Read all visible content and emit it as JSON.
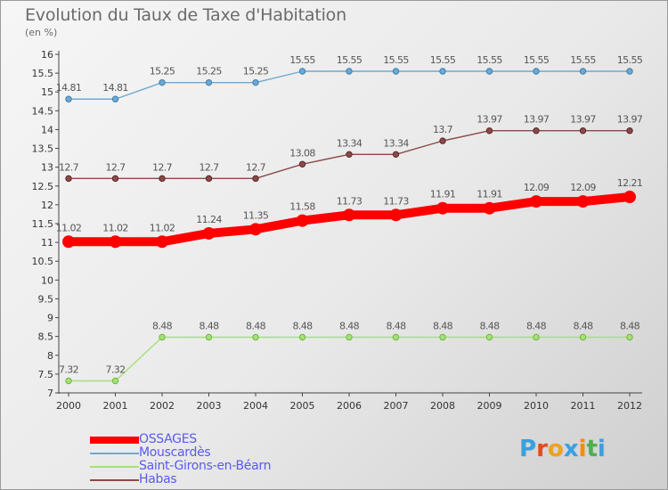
{
  "title": "Evolution du Taux de Taxe d'Habitation",
  "unit_label": "(en %)",
  "logo_text": "Proxiti",
  "chart_data": {
    "type": "line",
    "title": "Evolution du Taux de Taxe d'Habitation",
    "ylabel": "(en %)",
    "x": [
      "2000",
      "2001",
      "2002",
      "2003",
      "2004",
      "2005",
      "2006",
      "2007",
      "2008",
      "2009",
      "2010",
      "2011",
      "2012"
    ],
    "ylim": [
      7,
      16
    ],
    "y_ticks": [
      "7",
      "7.5",
      "8",
      "8.5",
      "9",
      "9.5",
      "10",
      "10.5",
      "11",
      "11.5",
      "12",
      "12.5",
      "13",
      "13.5",
      "14",
      "14.5",
      "15",
      "15.5",
      "16"
    ],
    "grid": false,
    "legend_position": "bottom-left",
    "series": [
      {
        "name": "OSSAGES",
        "color": "#ff0000",
        "values": [
          11.02,
          11.02,
          11.02,
          11.24,
          11.35,
          11.58,
          11.73,
          11.73,
          11.91,
          11.91,
          12.09,
          12.09,
          12.21
        ],
        "labels": [
          "11.02",
          "11.02",
          "11.02",
          "11.24",
          "11.35",
          "11.58",
          "11.73",
          "11.73",
          "11.91",
          "11.91",
          "12.09",
          "12.09",
          "12.21"
        ]
      },
      {
        "name": "Mouscardès",
        "color": "#6fa8d0",
        "values": [
          14.81,
          14.81,
          15.25,
          15.25,
          15.25,
          15.55,
          15.55,
          15.55,
          15.55,
          15.55,
          15.55,
          15.55,
          15.55
        ],
        "labels": [
          "14.81",
          "14.81",
          "15.25",
          "15.25",
          "15.25",
          "15.55",
          "15.55",
          "15.55",
          "15.55",
          "15.55",
          "15.55",
          "15.55",
          "15.55"
        ]
      },
      {
        "name": "Saint-Girons-en-Béarn",
        "color": "#a6e07a",
        "values": [
          7.32,
          7.32,
          8.48,
          8.48,
          8.48,
          8.48,
          8.48,
          8.48,
          8.48,
          8.48,
          8.48,
          8.48,
          8.48
        ],
        "labels": [
          "7.32",
          "7.32",
          "8.48",
          "8.48",
          "8.48",
          "8.48",
          "8.48",
          "8.48",
          "8.48",
          "8.48",
          "8.48",
          "8.48",
          "8.48"
        ]
      },
      {
        "name": "Habas",
        "color": "#8b4a4a",
        "values": [
          12.7,
          12.7,
          12.7,
          12.7,
          12.7,
          13.08,
          13.34,
          13.34,
          13.7,
          13.97,
          13.97,
          13.97,
          13.97
        ],
        "labels": [
          "12.7",
          "12.7",
          "12.7",
          "12.7",
          "12.7",
          "13.08",
          "13.34",
          "13.34",
          "13.7",
          "13.97",
          "13.97",
          "13.97",
          "13.97"
        ]
      }
    ]
  }
}
